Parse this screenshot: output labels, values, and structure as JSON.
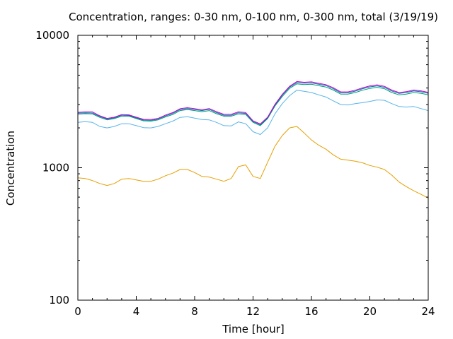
{
  "chart_data": {
    "type": "line",
    "title": "Concentration, ranges: 0-30 nm, 0-100 nm, 0-300 nm, total (3/19/19)",
    "xlabel": "Time [hour]",
    "ylabel": "Concentration",
    "x_scale": "linear",
    "y_scale": "log",
    "xlim": [
      0,
      24
    ],
    "ylim": [
      100,
      10000
    ],
    "xticks": [
      0,
      4,
      8,
      12,
      16,
      20,
      24
    ],
    "xtick_labels": [
      "0",
      "4",
      "8",
      "12",
      "16",
      "20",
      "24"
    ],
    "yticks": [
      100,
      1000,
      10000
    ],
    "ytick_labels": [
      "100",
      "1000",
      "10000"
    ],
    "grid": false,
    "legend": "none",
    "x": [
      0,
      0.5,
      1,
      1.5,
      2,
      2.5,
      3,
      3.5,
      4,
      4.5,
      5,
      5.5,
      6,
      6.5,
      7,
      7.5,
      8,
      8.5,
      9,
      9.5,
      10,
      10.5,
      11,
      11.5,
      12,
      12.5,
      13,
      13.5,
      14,
      14.5,
      15,
      15.5,
      16,
      16.5,
      17,
      17.5,
      18,
      18.5,
      19,
      19.5,
      20,
      20.5,
      21,
      21.5,
      22,
      22.5,
      23,
      23.5,
      24
    ],
    "series": [
      {
        "color": "#e69f00",
        "values": [
          840,
          830,
          800,
          760,
          735,
          760,
          820,
          830,
          810,
          790,
          790,
          820,
          870,
          910,
          970,
          970,
          920,
          860,
          850,
          820,
          790,
          830,
          1020,
          1050,
          860,
          830,
          1100,
          1450,
          1750,
          2000,
          2050,
          1830,
          1620,
          1480,
          1380,
          1250,
          1160,
          1140,
          1120,
          1090,
          1040,
          1010,
          970,
          880,
          780,
          720,
          670,
          630,
          590
        ]
      },
      {
        "color": "#56b4e9",
        "values": [
          2200,
          2230,
          2200,
          2050,
          2000,
          2050,
          2150,
          2150,
          2080,
          2010,
          2000,
          2050,
          2150,
          2250,
          2400,
          2430,
          2370,
          2310,
          2300,
          2200,
          2080,
          2070,
          2220,
          2150,
          1870,
          1780,
          2000,
          2550,
          3050,
          3500,
          3850,
          3780,
          3700,
          3550,
          3420,
          3200,
          3000,
          2980,
          3050,
          3100,
          3170,
          3250,
          3230,
          3050,
          2900,
          2870,
          2900,
          2800,
          2700
        ]
      },
      {
        "color": "#009e73",
        "values": [
          2540,
          2560,
          2550,
          2400,
          2300,
          2350,
          2450,
          2450,
          2350,
          2260,
          2250,
          2300,
          2420,
          2520,
          2700,
          2750,
          2700,
          2650,
          2700,
          2560,
          2450,
          2450,
          2550,
          2520,
          2200,
          2080,
          2350,
          2920,
          3450,
          3970,
          4300,
          4250,
          4270,
          4160,
          4070,
          3860,
          3600,
          3600,
          3700,
          3850,
          3970,
          4050,
          3950,
          3700,
          3550,
          3600,
          3700,
          3650,
          3550
        ]
      },
      {
        "color": "#0072b2",
        "values": [
          2580,
          2600,
          2590,
          2440,
          2330,
          2380,
          2490,
          2480,
          2380,
          2290,
          2280,
          2330,
          2460,
          2570,
          2750,
          2800,
          2750,
          2700,
          2760,
          2610,
          2490,
          2490,
          2600,
          2570,
          2230,
          2110,
          2380,
          2970,
          3530,
          4060,
          4400,
          4350,
          4370,
          4270,
          4170,
          3950,
          3680,
          3680,
          3790,
          3950,
          4080,
          4150,
          4050,
          3800,
          3640,
          3700,
          3800,
          3750,
          3650
        ]
      },
      {
        "color": "#cc00cc",
        "values": [
          2620,
          2640,
          2640,
          2470,
          2360,
          2410,
          2520,
          2510,
          2410,
          2320,
          2310,
          2360,
          2500,
          2610,
          2790,
          2840,
          2790,
          2740,
          2800,
          2650,
          2530,
          2530,
          2640,
          2610,
          2260,
          2140,
          2410,
          3010,
          3580,
          4120,
          4480,
          4420,
          4450,
          4340,
          4240,
          4020,
          3740,
          3740,
          3850,
          4010,
          4150,
          4230,
          4120,
          3860,
          3700,
          3760,
          3860,
          3810,
          3710
        ]
      }
    ]
  }
}
